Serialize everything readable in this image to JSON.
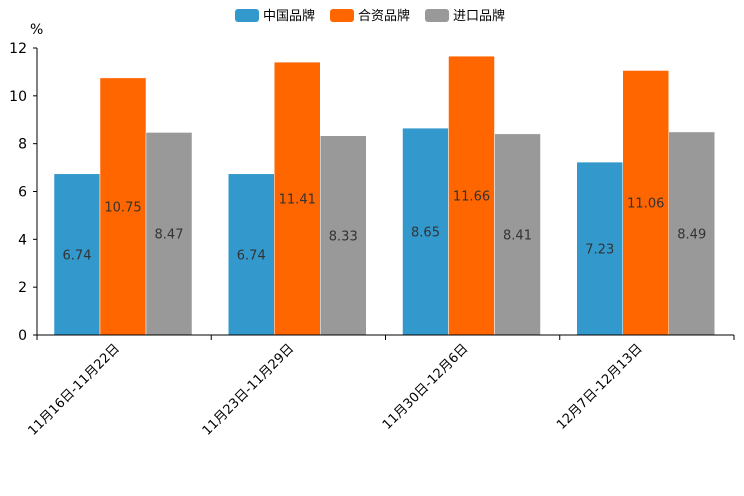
{
  "chart_data": {
    "type": "bar",
    "title": "",
    "xlabel": "",
    "ylabel": "%",
    "ylim": [
      0,
      12
    ],
    "yticks": [
      0,
      2,
      4,
      6,
      8,
      10,
      12
    ],
    "grid": false,
    "legend_position": "top-center",
    "categories": [
      "11月16日-11月22日",
      "11月23日-11月29日",
      "11月30日-12月6日",
      "12月7日-12月13日"
    ],
    "series": [
      {
        "name": "中国品牌",
        "color": "#3399cc",
        "values": [
          6.74,
          6.74,
          8.65,
          7.23
        ]
      },
      {
        "name": "合资品牌",
        "color": "#ff6600",
        "values": [
          10.75,
          11.41,
          11.66,
          11.06
        ]
      },
      {
        "name": "进口品牌",
        "color": "#999999",
        "values": [
          8.47,
          8.33,
          8.41,
          8.49
        ]
      }
    ]
  }
}
